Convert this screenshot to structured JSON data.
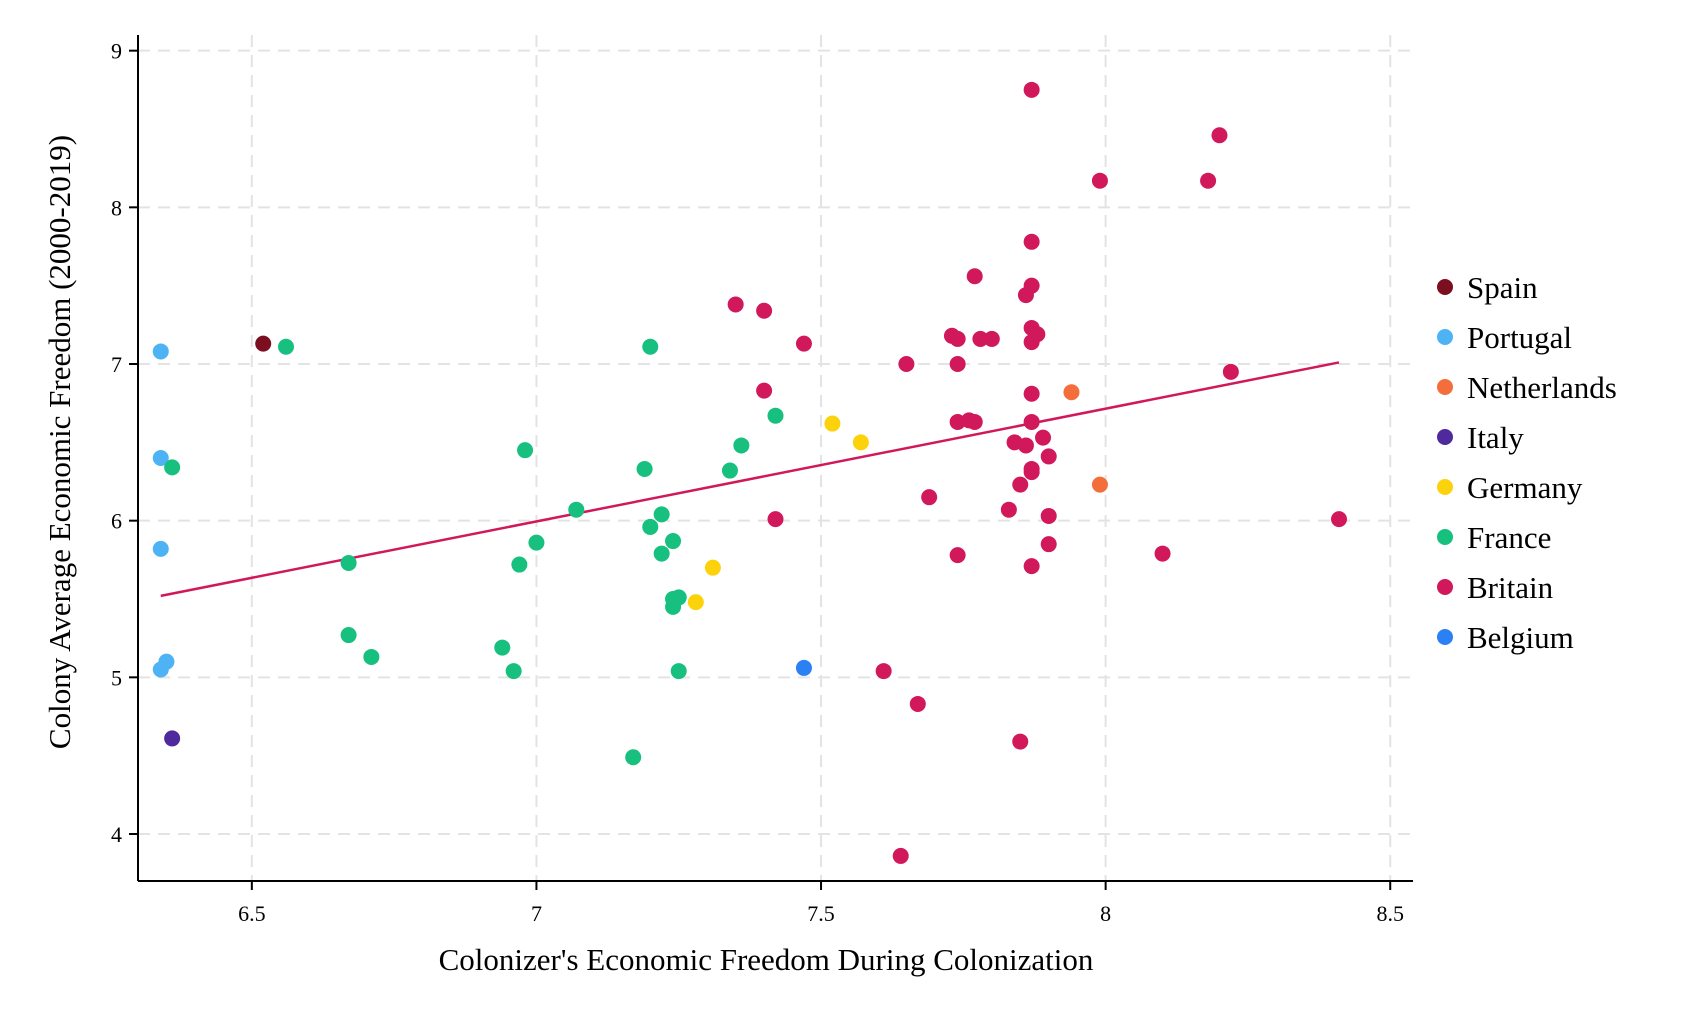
{
  "chart_data": {
    "type": "scatter",
    "xlabel": "Colonizer's Economic Freedom During Colonization",
    "ylabel": "Colony Average Economic Freedom (2000-2019)",
    "xlim": [
      6.3,
      8.54
    ],
    "ylim": [
      3.7,
      9.1
    ],
    "xticks": [
      6.5,
      7,
      7.5,
      8,
      8.5
    ],
    "xtick_labels": [
      "6.5",
      "7",
      "7.5",
      "8",
      "8.5"
    ],
    "yticks": [
      4,
      5,
      6,
      7,
      8,
      9
    ],
    "ytick_labels": [
      "4",
      "5",
      "6",
      "7",
      "8",
      "9"
    ],
    "grid": true,
    "legend_position": "right",
    "fit_line": {
      "color": "#d1185b",
      "x": [
        6.34,
        8.41
      ],
      "y": [
        5.52,
        7.01
      ]
    },
    "series": [
      {
        "name": "Spain",
        "color": "#7b0e1f",
        "points": [
          [
            6.52,
            7.13
          ]
        ]
      },
      {
        "name": "Portugal",
        "color": "#4db3f5",
        "points": [
          [
            6.34,
            7.08
          ],
          [
            6.34,
            6.4
          ],
          [
            6.34,
            5.82
          ],
          [
            6.35,
            5.1
          ],
          [
            6.34,
            5.05
          ]
        ]
      },
      {
        "name": "Netherlands",
        "color": "#f46e3c",
        "points": [
          [
            7.94,
            6.82
          ],
          [
            7.99,
            6.23
          ]
        ]
      },
      {
        "name": "Italy",
        "color": "#4e2a9c",
        "points": [
          [
            6.36,
            4.61
          ]
        ]
      },
      {
        "name": "Germany",
        "color": "#fcd20c",
        "points": [
          [
            7.52,
            6.62
          ],
          [
            7.57,
            6.5
          ],
          [
            7.31,
            5.7
          ],
          [
            7.28,
            5.48
          ]
        ]
      },
      {
        "name": "France",
        "color": "#17c07e",
        "points": [
          [
            6.56,
            7.11
          ],
          [
            6.36,
            6.34
          ],
          [
            6.98,
            6.45
          ],
          [
            7.2,
            7.11
          ],
          [
            7.19,
            6.33
          ],
          [
            7.42,
            6.67
          ],
          [
            7.36,
            6.48
          ],
          [
            7.34,
            6.32
          ],
          [
            7.07,
            6.07
          ],
          [
            7.22,
            6.04
          ],
          [
            7.2,
            5.96
          ],
          [
            7.24,
            5.87
          ],
          [
            7.22,
            5.79
          ],
          [
            7.0,
            5.86
          ],
          [
            6.97,
            5.72
          ],
          [
            6.67,
            5.73
          ],
          [
            7.25,
            5.51
          ],
          [
            7.24,
            5.5
          ],
          [
            7.24,
            5.45
          ],
          [
            6.67,
            5.27
          ],
          [
            6.71,
            5.13
          ],
          [
            6.94,
            5.19
          ],
          [
            6.96,
            5.04
          ],
          [
            7.25,
            5.04
          ],
          [
            7.17,
            4.49
          ]
        ]
      },
      {
        "name": "Britain",
        "color": "#d1185b",
        "points": [
          [
            7.87,
            8.75
          ],
          [
            8.2,
            8.46
          ],
          [
            7.99,
            8.17
          ],
          [
            8.18,
            8.17
          ],
          [
            7.87,
            7.78
          ],
          [
            7.77,
            7.56
          ],
          [
            7.87,
            7.5
          ],
          [
            7.86,
            7.44
          ],
          [
            7.35,
            7.38
          ],
          [
            7.4,
            7.34
          ],
          [
            7.47,
            7.13
          ],
          [
            7.73,
            7.18
          ],
          [
            7.74,
            7.16
          ],
          [
            7.78,
            7.16
          ],
          [
            7.8,
            7.16
          ],
          [
            7.87,
            7.23
          ],
          [
            7.87,
            7.14
          ],
          [
            7.88,
            7.19
          ],
          [
            7.65,
            7.0
          ],
          [
            7.74,
            7.0
          ],
          [
            8.22,
            6.95
          ],
          [
            7.4,
            6.83
          ],
          [
            7.87,
            6.81
          ],
          [
            7.74,
            6.63
          ],
          [
            7.76,
            6.64
          ],
          [
            7.77,
            6.63
          ],
          [
            7.87,
            6.63
          ],
          [
            7.84,
            6.5
          ],
          [
            7.86,
            6.48
          ],
          [
            7.89,
            6.53
          ],
          [
            7.9,
            6.41
          ],
          [
            7.87,
            6.33
          ],
          [
            7.87,
            6.31
          ],
          [
            7.85,
            6.23
          ],
          [
            7.69,
            6.15
          ],
          [
            7.83,
            6.07
          ],
          [
            7.42,
            6.01
          ],
          [
            7.9,
            6.03
          ],
          [
            8.41,
            6.01
          ],
          [
            7.9,
            5.85
          ],
          [
            7.74,
            5.78
          ],
          [
            8.1,
            5.79
          ],
          [
            7.87,
            5.71
          ],
          [
            7.61,
            5.04
          ],
          [
            7.67,
            4.83
          ],
          [
            7.85,
            4.59
          ],
          [
            7.64,
            3.86
          ]
        ]
      },
      {
        "name": "Belgium",
        "color": "#2b80f4",
        "points": [
          [
            7.47,
            5.06
          ]
        ]
      }
    ]
  }
}
